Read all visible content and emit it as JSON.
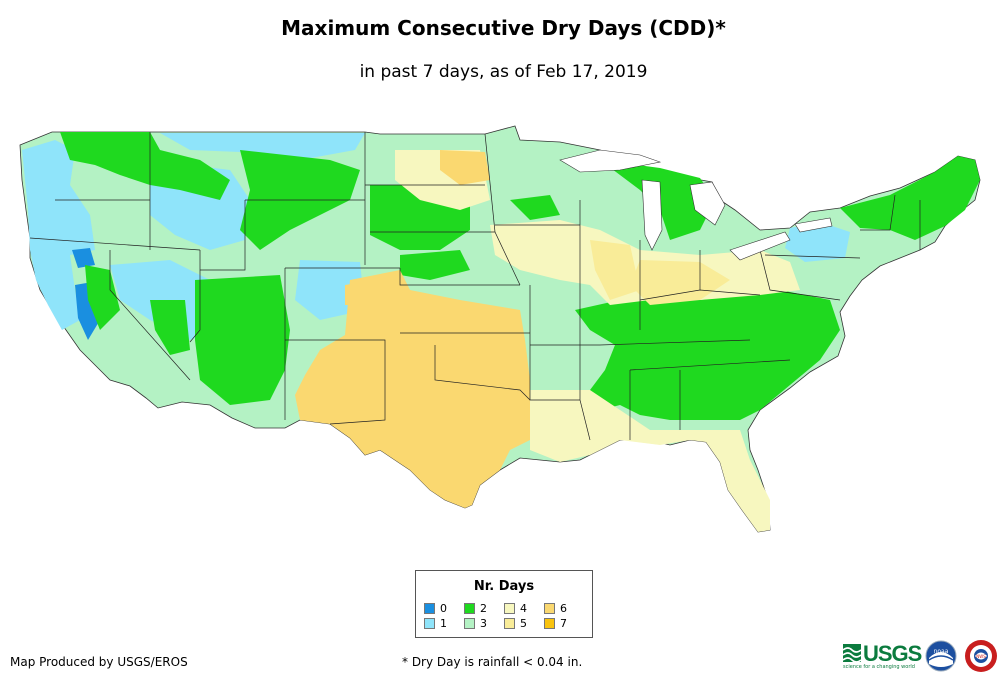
{
  "title": "Maximum Consecutive Dry Days (CDD)*",
  "subtitle": "in past 7 days, as of Feb 17, 2019",
  "legend": {
    "title": "Nr. Days",
    "items": [
      {
        "label": "0",
        "color": "#1a8fe0"
      },
      {
        "label": "1",
        "color": "#8fe4fa"
      },
      {
        "label": "2",
        "color": "#1fd91f"
      },
      {
        "label": "3",
        "color": "#b4f2c4"
      },
      {
        "label": "4",
        "color": "#f7f7bf"
      },
      {
        "label": "5",
        "color": "#f9ec98"
      },
      {
        "label": "6",
        "color": "#fad870"
      },
      {
        "label": "7",
        "color": "#f9c30e"
      }
    ]
  },
  "credit": "Map Produced by USGS/EROS",
  "footnote": "* Dry Day is rainfall < 0.04 in.",
  "logos": {
    "usgs": "USGS",
    "usgs_tagline": "science for a changing world",
    "noaa": "noaa",
    "nws": "NWS"
  }
}
